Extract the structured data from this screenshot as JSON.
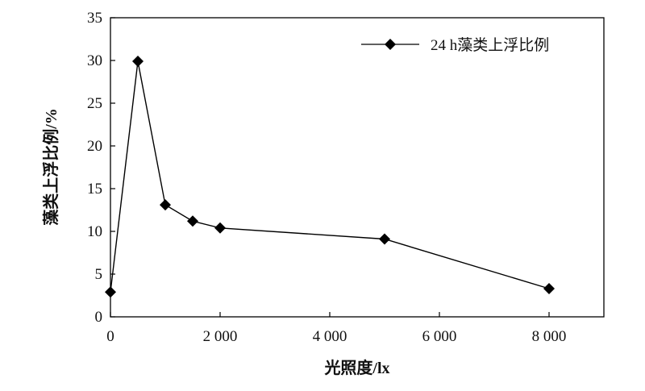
{
  "chart_data": {
    "type": "line",
    "xlabel": "光照度/lx",
    "ylabel": "藻类上浮比例/%",
    "xlim": [
      0,
      9000
    ],
    "ylim": [
      0,
      35
    ],
    "x_ticks": [
      0,
      2000,
      4000,
      6000,
      8000
    ],
    "x_tick_labels": [
      "0",
      "2 000",
      "4 000",
      "6 000",
      "8 000"
    ],
    "y_ticks": [
      0,
      5,
      10,
      15,
      20,
      25,
      30,
      35
    ],
    "y_tick_labels": [
      "0",
      "5",
      "10",
      "15",
      "20",
      "25",
      "30",
      "35"
    ],
    "grid": false,
    "legend_position": "top-right",
    "series": [
      {
        "name": "24 h藻类上浮比例",
        "color": "#000000",
        "marker": "diamond",
        "x": [
          0,
          500,
          1000,
          1500,
          2000,
          5000,
          8000
        ],
        "y": [
          2.9,
          29.9,
          13.1,
          11.2,
          10.4,
          9.1,
          3.3
        ]
      }
    ]
  }
}
